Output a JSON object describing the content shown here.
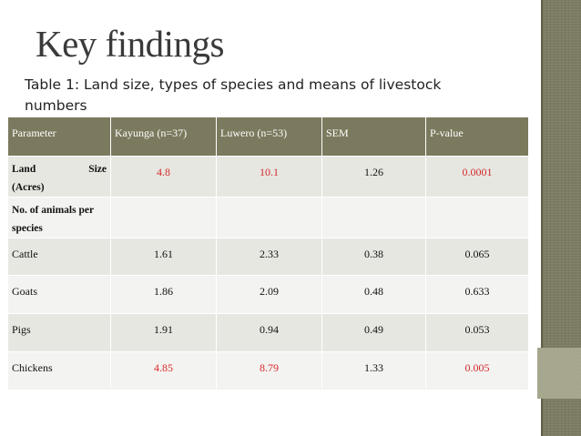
{
  "title": "Key findings",
  "caption": "Table 1:  Land size, types of species and means of livestock numbers",
  "table": {
    "headers": [
      "Parameter",
      "Kayunga (n=37)",
      "Luwero (n=53)",
      "SEM",
      "P-value"
    ],
    "land_size": {
      "label_word1": "Land",
      "label_word2": "Size",
      "label_line2": "(Acres)",
      "values": [
        "4.8",
        "10.1",
        "1.26",
        "0.0001"
      ]
    },
    "animals_header": "No. of animals per species",
    "rows": [
      {
        "label": "Cattle",
        "values": [
          "1.61",
          "2.33",
          "0.38",
          "0.065"
        ]
      },
      {
        "label": "Goats",
        "values": [
          "1.86",
          "2.09",
          "0.48",
          "0.633"
        ]
      },
      {
        "label": "Pigs",
        "values": [
          "1.91",
          "0.94",
          "0.49",
          "0.053"
        ]
      },
      {
        "label": "Chickens",
        "values": [
          "4.85",
          "8.79",
          "1.33",
          "0.005"
        ]
      }
    ]
  },
  "colors": {
    "header_bg": "#7b7a5e",
    "highlight": "#d42a2a",
    "sidebar": "#7d7c63"
  }
}
